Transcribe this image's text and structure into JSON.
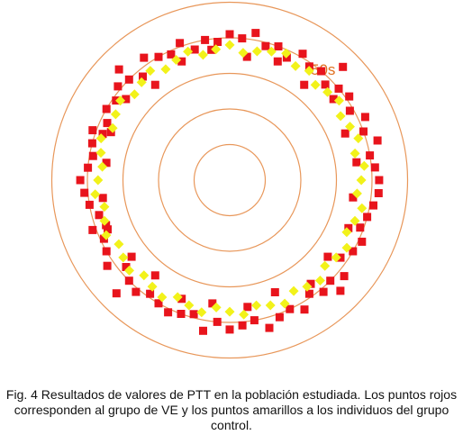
{
  "caption": "Fig. 4 Resultados de valores de PTT en la población estudiada. Los puntos rojos corresponden al grupo de VE y los puntos amarillos a los individuos del grupo control.",
  "chart_data": {
    "type": "scatter",
    "title": "",
    "coordinate_system": "polar",
    "ring_label": "50s",
    "ring_values": [
      10,
      20,
      30,
      40,
      50
    ],
    "grid": true,
    "colors": {
      "rings": "#e8975a",
      "ring_label": "#e07020",
      "ve": "#e8141c",
      "control": "#f2f21a"
    },
    "series": [
      {
        "group": "VE",
        "color": "#e8141c",
        "marker": "square",
        "angle_deg": [
          0,
          5,
          10,
          15,
          20,
          25,
          30,
          35,
          40,
          45,
          50,
          55,
          60,
          65,
          70,
          75,
          80,
          85,
          90,
          95,
          100,
          105,
          110,
          115,
          120,
          125,
          130,
          135,
          140,
          145,
          150,
          155,
          160,
          165,
          170,
          175,
          180,
          185,
          190,
          195,
          200,
          205,
          210,
          215,
          220,
          225,
          230,
          235,
          240,
          245,
          250,
          255,
          260,
          265,
          270,
          275,
          280,
          285,
          290,
          295,
          300,
          305,
          310,
          315,
          320,
          325,
          330,
          335,
          340,
          345,
          350,
          355,
          8,
          22,
          38,
          52,
          68,
          82,
          98,
          112,
          128,
          142,
          158,
          172,
          188,
          202,
          218,
          232,
          248,
          262,
          278,
          292,
          308,
          322,
          338,
          352,
          45,
          135,
          225,
          315,
          160,
          200
        ],
        "radius": [
          42,
          41,
          40,
          43,
          40,
          42,
          39,
          41,
          40,
          38,
          40,
          39,
          41,
          38,
          40,
          39,
          42,
          40,
          41,
          39,
          40,
          38,
          41,
          39,
          40,
          42,
          38,
          40,
          41,
          39,
          40,
          38,
          41,
          40,
          39,
          40,
          42,
          41,
          40,
          38,
          41,
          39,
          40,
          42,
          38,
          40,
          41,
          39,
          40,
          41,
          40,
          39,
          43,
          40,
          42,
          41,
          40,
          43,
          41,
          40,
          42,
          39,
          41,
          40,
          42,
          38,
          40,
          41,
          39,
          40,
          41,
          42,
          36,
          35,
          37,
          34,
          36,
          35,
          37,
          36,
          34,
          37,
          36,
          35,
          36,
          37,
          35,
          34,
          36,
          35,
          36,
          34,
          37,
          35,
          36,
          35,
          45,
          44,
          45,
          44,
          38,
          37
        ]
      },
      {
        "group": "Control",
        "color": "#f2f21a",
        "marker": "diamond",
        "angle_deg": [
          0,
          6,
          12,
          18,
          24,
          30,
          36,
          42,
          48,
          54,
          60,
          66,
          72,
          78,
          84,
          90,
          96,
          102,
          108,
          114,
          120,
          126,
          132,
          138,
          144,
          150,
          156,
          162,
          168,
          174,
          180,
          186,
          192,
          198,
          204,
          210,
          216,
          222,
          228,
          234,
          240,
          246,
          252,
          258,
          264,
          270,
          276,
          282,
          288,
          294,
          300,
          306,
          312,
          318,
          324,
          330,
          336,
          342,
          348,
          354
        ],
        "radius": [
          37,
          38,
          36,
          38,
          37,
          36,
          38,
          37,
          36,
          38,
          37,
          39,
          38,
          37,
          36,
          38,
          37,
          36,
          38,
          37,
          36,
          38,
          37,
          36,
          38,
          37,
          36,
          38,
          37,
          36,
          37,
          38,
          36,
          37,
          38,
          36,
          37,
          38,
          36,
          37,
          38,
          36,
          37,
          38,
          36,
          37,
          38,
          36,
          37,
          38,
          36,
          37,
          38,
          36,
          37,
          38,
          36,
          37,
          38,
          36
        ]
      }
    ]
  }
}
